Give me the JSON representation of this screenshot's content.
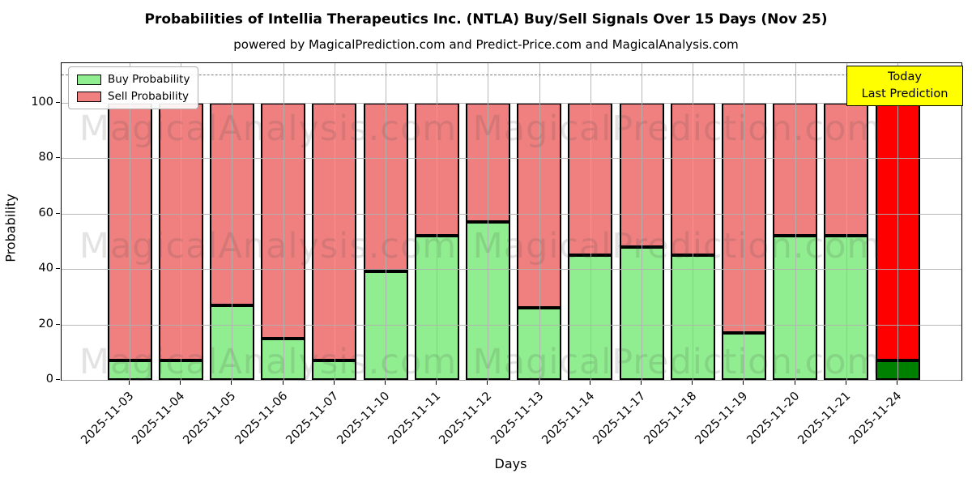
{
  "chart_data": {
    "type": "bar",
    "stacked": true,
    "title": "Probabilities of Intellia Therapeutics Inc. (NTLA) Buy/Sell Signals Over 15 Days (Nov 25)",
    "subtitle": "powered by MagicalPrediction.com and Predict-Price.com and MagicalAnalysis.com",
    "xlabel": "Days",
    "ylabel": "Probability",
    "categories": [
      "2025-11-03",
      "2025-11-04",
      "2025-11-05",
      "2025-11-06",
      "2025-11-07",
      "2025-11-10",
      "2025-11-11",
      "2025-11-12",
      "2025-11-13",
      "2025-11-14",
      "2025-11-17",
      "2025-11-18",
      "2025-11-19",
      "2025-11-20",
      "2025-11-21",
      "2025-11-24"
    ],
    "series": [
      {
        "name": "Buy Probability",
        "values": [
          7,
          7,
          27,
          15,
          7,
          39,
          52,
          57,
          26,
          45,
          48,
          45,
          17,
          52,
          52,
          7
        ]
      },
      {
        "name": "Sell Probability",
        "values": [
          93,
          93,
          73,
          85,
          93,
          61,
          48,
          43,
          74,
          55,
          52,
          55,
          83,
          48,
          48,
          93
        ]
      }
    ],
    "ylim": [
      0,
      114.2
    ],
    "yticks": [
      0,
      20,
      40,
      60,
      80,
      100
    ],
    "grid": true,
    "dashed_line_y": 110,
    "legend_position": "upper-left",
    "today_index": 15,
    "colors": {
      "buy": "#90EE90",
      "sell": "#F08080",
      "buy_today": "#008000",
      "sell_today": "#FF0000",
      "bar_edge": "#000000",
      "grid": "#b0b0b0",
      "dashed_line": "#7f7f7f"
    }
  },
  "legend": {
    "items": [
      {
        "label": "Buy Probability",
        "color": "#90EE90"
      },
      {
        "label": "Sell Probability",
        "color": "#F08080"
      }
    ]
  },
  "annotation": {
    "line1": "Today",
    "line2": "Last Prediction",
    "bg": "#FFFF00",
    "border": "#000000"
  },
  "watermarks": {
    "left": "MagicalAnalysis.com",
    "right": "MagicalPrediction.com"
  }
}
